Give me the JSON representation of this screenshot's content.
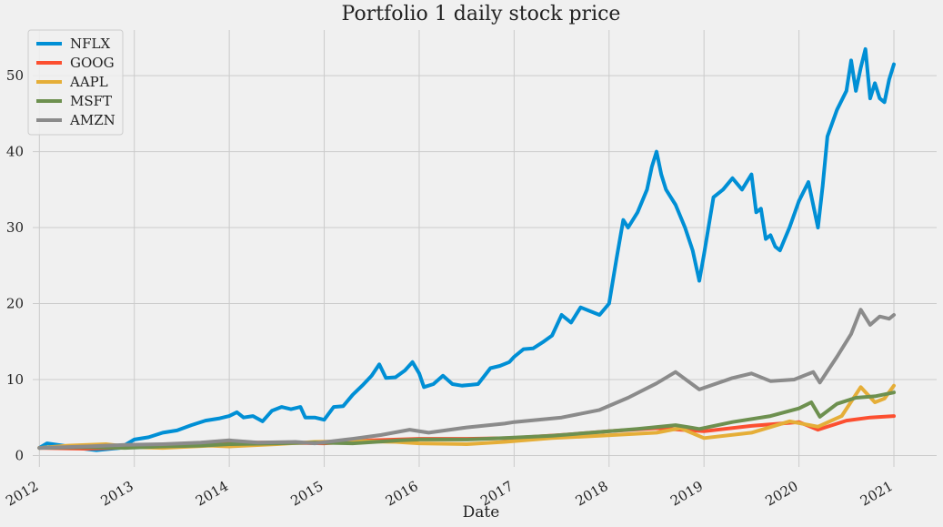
{
  "chart_data": {
    "type": "line",
    "title": "Portfolio 1 daily stock price",
    "xlabel": "Date",
    "ylabel": "",
    "xlim": [
      2011.93,
      2021.45
    ],
    "ylim": [
      -1.5,
      56
    ],
    "x_ticks": [
      2012,
      2013,
      2014,
      2015,
      2016,
      2017,
      2018,
      2019,
      2020,
      2021
    ],
    "x_tick_labels": [
      "2012",
      "2013",
      "2014",
      "2015",
      "2016",
      "2017",
      "2018",
      "2019",
      "2020",
      "2021"
    ],
    "y_ticks": [
      0,
      10,
      20,
      30,
      40,
      50
    ],
    "y_tick_labels": [
      "0",
      "10",
      "20",
      "30",
      "40",
      "50"
    ],
    "grid": true,
    "legend_position": "top-left",
    "series": [
      {
        "name": "NFLX",
        "color": "#008fd5",
        "points": [
          [
            2012.0,
            1.0
          ],
          [
            2012.08,
            1.6
          ],
          [
            2012.25,
            1.3
          ],
          [
            2012.4,
            1.0
          ],
          [
            2012.6,
            0.7
          ],
          [
            2012.85,
            1.0
          ],
          [
            2013.0,
            2.1
          ],
          [
            2013.15,
            2.4
          ],
          [
            2013.3,
            3.0
          ],
          [
            2013.45,
            3.3
          ],
          [
            2013.6,
            4.0
          ],
          [
            2013.75,
            4.6
          ],
          [
            2013.9,
            4.9
          ],
          [
            2014.0,
            5.2
          ],
          [
            2014.08,
            5.7
          ],
          [
            2014.15,
            5.0
          ],
          [
            2014.25,
            5.2
          ],
          [
            2014.35,
            4.5
          ],
          [
            2014.45,
            5.9
          ],
          [
            2014.55,
            6.4
          ],
          [
            2014.65,
            6.1
          ],
          [
            2014.75,
            6.4
          ],
          [
            2014.8,
            5.0
          ],
          [
            2014.9,
            5.0
          ],
          [
            2015.0,
            4.7
          ],
          [
            2015.1,
            6.4
          ],
          [
            2015.2,
            6.5
          ],
          [
            2015.3,
            8.0
          ],
          [
            2015.4,
            9.2
          ],
          [
            2015.5,
            10.5
          ],
          [
            2015.58,
            12.0
          ],
          [
            2015.65,
            10.2
          ],
          [
            2015.75,
            10.3
          ],
          [
            2015.85,
            11.2
          ],
          [
            2015.93,
            12.3
          ],
          [
            2016.0,
            10.8
          ],
          [
            2016.05,
            9.0
          ],
          [
            2016.15,
            9.4
          ],
          [
            2016.25,
            10.5
          ],
          [
            2016.35,
            9.4
          ],
          [
            2016.45,
            9.2
          ],
          [
            2016.55,
            9.3
          ],
          [
            2016.62,
            9.4
          ],
          [
            2016.75,
            11.5
          ],
          [
            2016.85,
            11.8
          ],
          [
            2016.95,
            12.3
          ],
          [
            2017.0,
            13.0
          ],
          [
            2017.1,
            14.0
          ],
          [
            2017.2,
            14.1
          ],
          [
            2017.3,
            14.9
          ],
          [
            2017.4,
            15.8
          ],
          [
            2017.5,
            18.5
          ],
          [
            2017.6,
            17.5
          ],
          [
            2017.7,
            19.5
          ],
          [
            2017.8,
            19.0
          ],
          [
            2017.9,
            18.5
          ],
          [
            2018.0,
            20.0
          ],
          [
            2018.08,
            26.0
          ],
          [
            2018.15,
            31.0
          ],
          [
            2018.2,
            30.0
          ],
          [
            2018.3,
            32.0
          ],
          [
            2018.4,
            35.0
          ],
          [
            2018.45,
            38.0
          ],
          [
            2018.5,
            40.0
          ],
          [
            2018.55,
            37.0
          ],
          [
            2018.6,
            35.0
          ],
          [
            2018.7,
            33.0
          ],
          [
            2018.8,
            30.0
          ],
          [
            2018.88,
            27.0
          ],
          [
            2018.95,
            23.0
          ],
          [
            2019.0,
            26.5
          ],
          [
            2019.1,
            34.0
          ],
          [
            2019.2,
            35.0
          ],
          [
            2019.3,
            36.5
          ],
          [
            2019.4,
            35.0
          ],
          [
            2019.5,
            37.0
          ],
          [
            2019.55,
            32.0
          ],
          [
            2019.6,
            32.5
          ],
          [
            2019.65,
            28.5
          ],
          [
            2019.7,
            29.0
          ],
          [
            2019.75,
            27.5
          ],
          [
            2019.8,
            27.0
          ],
          [
            2019.85,
            28.5
          ],
          [
            2019.9,
            30.0
          ],
          [
            2020.0,
            33.5
          ],
          [
            2020.1,
            36.0
          ],
          [
            2020.2,
            30.0
          ],
          [
            2020.25,
            35.5
          ],
          [
            2020.3,
            42.0
          ],
          [
            2020.4,
            45.5
          ],
          [
            2020.5,
            48.0
          ],
          [
            2020.55,
            52.0
          ],
          [
            2020.6,
            48.0
          ],
          [
            2020.65,
            51.0
          ],
          [
            2020.7,
            53.5
          ],
          [
            2020.75,
            47.0
          ],
          [
            2020.8,
            49.0
          ],
          [
            2020.85,
            47.0
          ],
          [
            2020.9,
            46.5
          ],
          [
            2020.95,
            49.5
          ],
          [
            2021.0,
            51.5
          ]
        ]
      },
      {
        "name": "GOOG",
        "color": "#fc4f30",
        "points": [
          [
            2012.0,
            1.0
          ],
          [
            2012.5,
            0.9
          ],
          [
            2013.0,
            1.1
          ],
          [
            2013.5,
            1.3
          ],
          [
            2014.0,
            1.7
          ],
          [
            2014.5,
            1.7
          ],
          [
            2015.0,
            1.6
          ],
          [
            2015.5,
            2.0
          ],
          [
            2016.0,
            2.2
          ],
          [
            2016.5,
            2.2
          ],
          [
            2017.0,
            2.3
          ],
          [
            2017.5,
            2.7
          ],
          [
            2018.0,
            3.2
          ],
          [
            2018.5,
            3.6
          ],
          [
            2019.0,
            3.2
          ],
          [
            2019.5,
            3.9
          ],
          [
            2020.0,
            4.4
          ],
          [
            2020.2,
            3.4
          ],
          [
            2020.5,
            4.6
          ],
          [
            2020.75,
            5.0
          ],
          [
            2021.0,
            5.2
          ]
        ]
      },
      {
        "name": "AAPL",
        "color": "#e5ae38",
        "points": [
          [
            2012.0,
            1.0
          ],
          [
            2012.3,
            1.3
          ],
          [
            2012.7,
            1.5
          ],
          [
            2013.0,
            1.1
          ],
          [
            2013.3,
            1.0
          ],
          [
            2013.8,
            1.3
          ],
          [
            2014.0,
            1.2
          ],
          [
            2014.5,
            1.5
          ],
          [
            2014.9,
            1.8
          ],
          [
            2015.3,
            1.9
          ],
          [
            2015.75,
            1.8
          ],
          [
            2016.0,
            1.6
          ],
          [
            2016.5,
            1.5
          ],
          [
            2016.9,
            1.8
          ],
          [
            2017.4,
            2.3
          ],
          [
            2017.9,
            2.6
          ],
          [
            2018.5,
            3.0
          ],
          [
            2018.75,
            3.6
          ],
          [
            2019.0,
            2.3
          ],
          [
            2019.5,
            3.0
          ],
          [
            2019.9,
            4.5
          ],
          [
            2020.2,
            3.8
          ],
          [
            2020.45,
            5.2
          ],
          [
            2020.65,
            9.0
          ],
          [
            2020.8,
            7.0
          ],
          [
            2020.9,
            7.5
          ],
          [
            2021.0,
            9.2
          ]
        ]
      },
      {
        "name": "MSFT",
        "color": "#6d904f",
        "points": [
          [
            2012.0,
            1.0
          ],
          [
            2012.5,
            1.1
          ],
          [
            2012.9,
            1.0
          ],
          [
            2013.3,
            1.2
          ],
          [
            2013.7,
            1.3
          ],
          [
            2014.0,
            1.5
          ],
          [
            2014.5,
            1.6
          ],
          [
            2014.9,
            1.7
          ],
          [
            2015.3,
            1.6
          ],
          [
            2015.8,
            2.0
          ],
          [
            2016.0,
            2.1
          ],
          [
            2016.5,
            2.1
          ],
          [
            2016.9,
            2.3
          ],
          [
            2017.4,
            2.6
          ],
          [
            2017.9,
            3.1
          ],
          [
            2018.3,
            3.5
          ],
          [
            2018.7,
            4.0
          ],
          [
            2018.95,
            3.5
          ],
          [
            2019.3,
            4.4
          ],
          [
            2019.7,
            5.2
          ],
          [
            2020.0,
            6.2
          ],
          [
            2020.13,
            7.0
          ],
          [
            2020.22,
            5.1
          ],
          [
            2020.4,
            6.8
          ],
          [
            2020.6,
            7.6
          ],
          [
            2020.8,
            7.8
          ],
          [
            2021.0,
            8.3
          ]
        ]
      },
      {
        "name": "AMZN",
        "color": "#8b8b8b",
        "points": [
          [
            2012.0,
            1.0
          ],
          [
            2012.5,
            1.2
          ],
          [
            2012.9,
            1.4
          ],
          [
            2013.3,
            1.5
          ],
          [
            2013.7,
            1.7
          ],
          [
            2014.0,
            2.0
          ],
          [
            2014.3,
            1.7
          ],
          [
            2014.7,
            1.8
          ],
          [
            2014.9,
            1.6
          ],
          [
            2015.3,
            2.2
          ],
          [
            2015.6,
            2.7
          ],
          [
            2015.9,
            3.4
          ],
          [
            2016.1,
            3.0
          ],
          [
            2016.5,
            3.7
          ],
          [
            2016.9,
            4.2
          ],
          [
            2017.0,
            4.4
          ],
          [
            2017.5,
            5.0
          ],
          [
            2017.9,
            6.0
          ],
          [
            2018.2,
            7.6
          ],
          [
            2018.5,
            9.5
          ],
          [
            2018.7,
            11.0
          ],
          [
            2018.95,
            8.7
          ],
          [
            2019.3,
            10.2
          ],
          [
            2019.5,
            10.8
          ],
          [
            2019.7,
            9.8
          ],
          [
            2019.95,
            10.0
          ],
          [
            2020.15,
            11.0
          ],
          [
            2020.22,
            9.6
          ],
          [
            2020.4,
            13.0
          ],
          [
            2020.55,
            16.0
          ],
          [
            2020.65,
            19.2
          ],
          [
            2020.75,
            17.2
          ],
          [
            2020.85,
            18.3
          ],
          [
            2020.95,
            18.0
          ],
          [
            2021.0,
            18.5
          ]
        ]
      }
    ]
  }
}
